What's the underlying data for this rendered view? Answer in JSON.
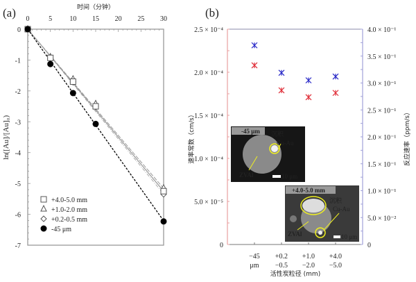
{
  "chart_data": [
    {
      "panel_label": "(a)",
      "type": "scatter",
      "xlabel": "时间（分钟）",
      "ylabel": "ln([Au]/[Au]₀)",
      "xlim": [
        0,
        30
      ],
      "ylim": [
        -7,
        0
      ],
      "x_ticks": [
        "0",
        "5",
        "10",
        "15",
        "20",
        "25",
        "30"
      ],
      "y_ticks": [
        "0",
        "-1",
        "-2",
        "-3",
        "-4",
        "-5",
        "-6",
        "-7"
      ],
      "x_axis_position": "top",
      "grid": false,
      "legend_position": "bottom-left",
      "x": [
        0,
        5,
        10,
        15,
        30
      ],
      "series": [
        {
          "name": "+4.0-5.0 mm",
          "marker": "square",
          "values": [
            0,
            -0.93,
            -1.7,
            -2.5,
            -5.25
          ],
          "fit_slope": -0.175,
          "line_style": "solid",
          "color": "#888888"
        },
        {
          "name": "+1.0-2.0 mm",
          "marker": "triangle",
          "values": [
            0,
            -0.9,
            -1.62,
            -2.42,
            -5.15
          ],
          "fit_slope": -0.172,
          "line_style": "dash",
          "color": "#999999"
        },
        {
          "name": "+0.2-0.5 mm",
          "marker": "diamond",
          "values": [
            0,
            -0.95,
            -1.72,
            -2.52,
            -5.35
          ],
          "fit_slope": -0.178,
          "line_style": "dash-dot",
          "color": "#aaaaaa"
        },
        {
          "name": "-45 μm",
          "marker": "circle",
          "values": [
            0,
            -1.13,
            -2.07,
            -3.07,
            -6.23
          ],
          "fit_slope": -0.207,
          "line_style": "dotted",
          "color": "#000000"
        }
      ]
    },
    {
      "panel_label": "(b)",
      "type": "scatter",
      "xlabel": "活性炭粒径 (mm)",
      "ylabel": "速率常数（cm/s）",
      "ylabel_right": "反应速率（ppm/s）",
      "categories": [
        [
          "−45",
          "μm"
        ],
        [
          "+0.2",
          "−0.5"
        ],
        [
          "+1.0",
          "−2.0"
        ],
        [
          "+4.0",
          "−5.0"
        ]
      ],
      "ylim": [
        0,
        0.00025
      ],
      "ylim_right": [
        0,
        0.4
      ],
      "y_ticks": [
        "0",
        "5.0 × 10⁻⁵",
        "1.0 × 10⁻⁴",
        "1.5 × 10⁻⁴",
        "2.0 × 10⁻⁴",
        "2.5 × 10⁻⁴"
      ],
      "y_ticks_right": [
        "0",
        "5.0 × 10⁻²",
        "1.0 × 10⁻¹",
        "1.5 × 10⁻¹",
        "2.0 × 10⁻¹",
        "2.5 × 10⁻¹",
        "3.0 × 10⁻¹",
        "3.5 × 10⁻¹",
        "4.0 × 10⁻¹"
      ],
      "grid": false,
      "series": [
        {
          "axis": "left",
          "marker": "asterisk",
          "color": "#e0303a",
          "values": [
            0.000208,
            0.000179,
            0.000171,
            0.000176
          ]
        },
        {
          "axis": "right",
          "marker": "asterisk",
          "color": "#2b2bc8",
          "values": [
            0.37,
            0.319,
            0.305,
            0.312
          ]
        }
      ],
      "axis_colors": {
        "left": "#e8a0a0",
        "right": "#a0a0d8"
      },
      "insets": [
        {
          "tag": "-45 μm",
          "deposit_label": "沉积",
          "deposit_species": "Cu-Au",
          "particle_label": "ZVAl",
          "scale_bar": "10 μm",
          "annotation_color": "#f0f020"
        },
        {
          "tag": "+4.0-5.0 mm",
          "deposit_label": "沉积",
          "deposit_species": "Cu-Au",
          "particle_label": "ZVAl",
          "scale_bar": "10 μm",
          "annotation_color": "#f0f020"
        }
      ]
    }
  ]
}
